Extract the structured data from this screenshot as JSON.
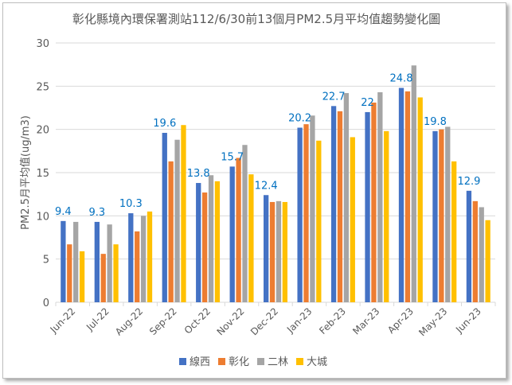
{
  "chart_data": {
    "type": "bar",
    "title": "彰化縣境內環保署測站112/6/30前13個月PM2.5月平均值趨勢變化圖",
    "xlabel": "",
    "ylabel": "PM2.5月平均值(ug/m3)",
    "ylim": [
      0,
      30
    ],
    "yticks": [
      0,
      5,
      10,
      15,
      20,
      25,
      30
    ],
    "grid": true,
    "legend_position": "bottom",
    "categories": [
      "Jun-22",
      "Jul-22",
      "Aug-22",
      "Sep-22",
      "Oct-22",
      "Nov-22",
      "Dec-22",
      "Jan-23",
      "Feb-23",
      "Mar-23",
      "Apr-23",
      "May-23",
      "Jun-23"
    ],
    "series": [
      {
        "name": "線西",
        "color": "#4472C4",
        "values": [
          9.4,
          9.3,
          10.3,
          19.6,
          13.8,
          15.7,
          12.4,
          20.2,
          22.7,
          22,
          24.8,
          19.8,
          12.9
        ],
        "data_labels": [
          "9.4",
          "9.3",
          "10.3",
          "19.6",
          "13.8",
          "15.7",
          "12.4",
          "20.2",
          "22.7",
          "22",
          "24.8",
          "19.8",
          "12.9"
        ]
      },
      {
        "name": "彰化",
        "color": "#ED7D31",
        "values": [
          6.7,
          5.6,
          8.2,
          16.3,
          12.7,
          16.7,
          11.6,
          20.6,
          22.1,
          23.1,
          24.4,
          20.0,
          11.7
        ]
      },
      {
        "name": "二林",
        "color": "#A5A5A5",
        "values": [
          9.3,
          9.0,
          10.0,
          18.8,
          14.7,
          18.2,
          11.7,
          21.6,
          24.2,
          24.3,
          27.4,
          20.3,
          11.0
        ]
      },
      {
        "name": "大城",
        "color": "#FFC000",
        "values": [
          5.9,
          6.7,
          10.5,
          20.5,
          14.0,
          14.8,
          11.6,
          18.7,
          19.1,
          19.8,
          23.7,
          16.3,
          9.5
        ]
      }
    ],
    "data_label_color": "#0070C0"
  }
}
